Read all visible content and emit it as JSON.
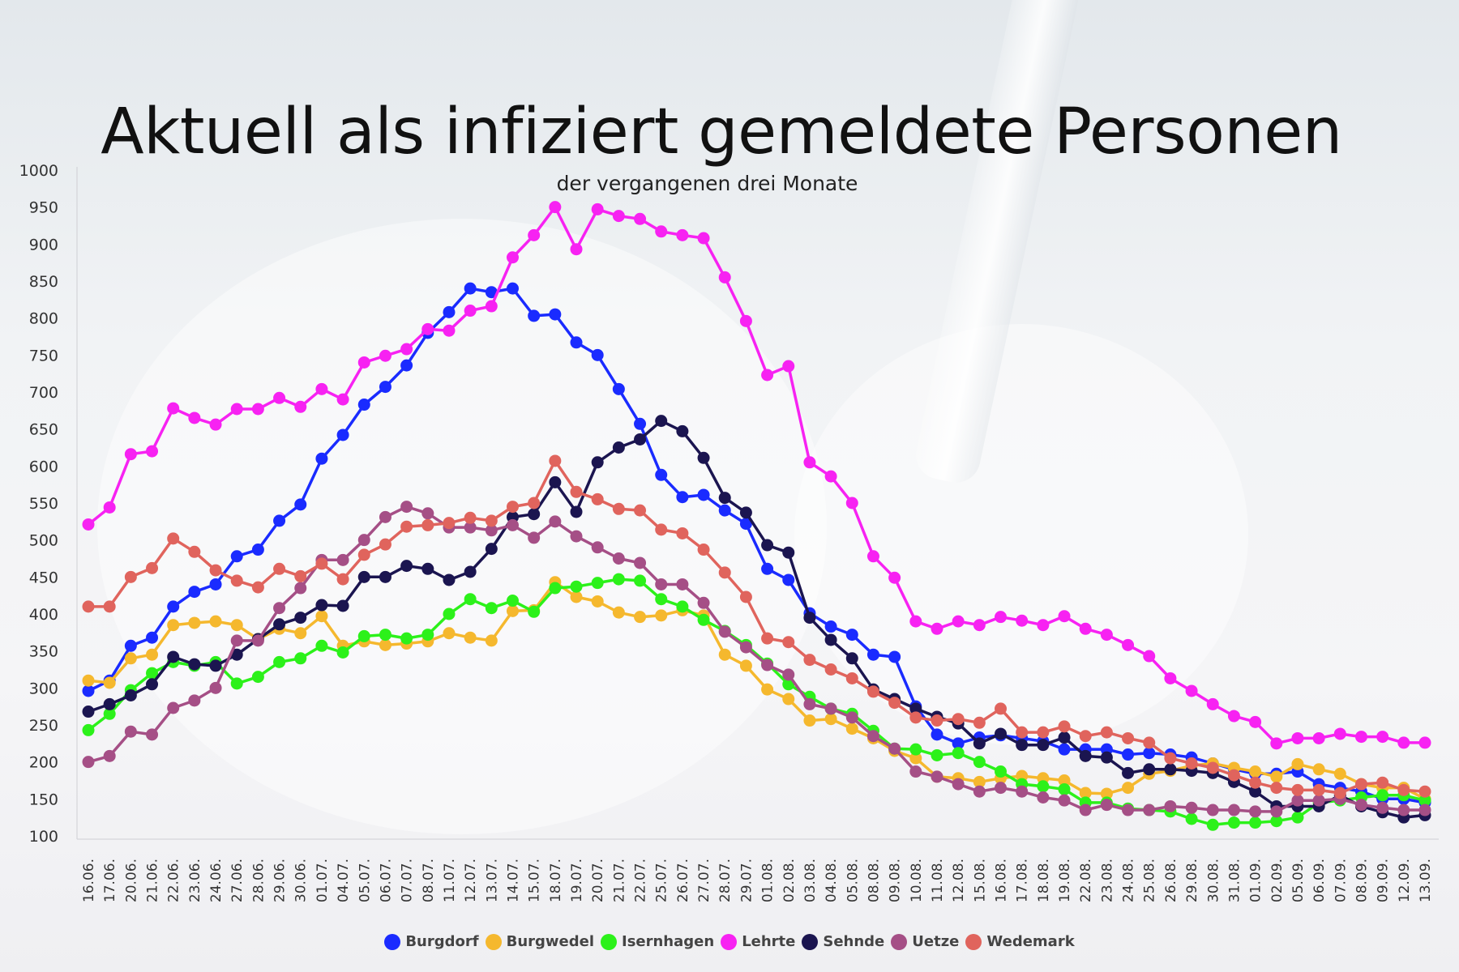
{
  "chart_data": {
    "type": "line",
    "title": "Aktuell als infiziert gemeldete Personen",
    "subtitle": "der vergangenen drei Monate",
    "xlabel": "",
    "ylabel": "",
    "ylim": [
      100,
      1000
    ],
    "yticks": [
      100,
      150,
      200,
      250,
      300,
      350,
      400,
      450,
      500,
      550,
      600,
      650,
      700,
      750,
      800,
      850,
      900,
      950,
      1000
    ],
    "grid": false,
    "legend_position": "bottom",
    "categories": [
      "16.06.",
      "17.06.",
      "20.06.",
      "21.06.",
      "22.06.",
      "23.06.",
      "24.06.",
      "27.06.",
      "28.06.",
      "29.06.",
      "30.06.",
      "01.07.",
      "04.07.",
      "05.07.",
      "06.07.",
      "07.07.",
      "08.07.",
      "11.07.",
      "12.07.",
      "13.07.",
      "14.07.",
      "15.07.",
      "18.07.",
      "19.07.",
      "20.07.",
      "21.07.",
      "22.07.",
      "25.07.",
      "26.07.",
      "27.07.",
      "28.07.",
      "29.07.",
      "01.08.",
      "02.08.",
      "03.08.",
      "04.08.",
      "05.08.",
      "08.08.",
      "09.08.",
      "10.08.",
      "11.08.",
      "12.08.",
      "15.08.",
      "16.08.",
      "17.08.",
      "18.08.",
      "19.08.",
      "22.08.",
      "23.08.",
      "24.08.",
      "25.08.",
      "26.08.",
      "29.08.",
      "30.08.",
      "31.08.",
      "01.09.",
      "02.09.",
      "05.09.",
      "06.09.",
      "07.09.",
      "08.09.",
      "09.09.",
      "12.09.",
      "13.09."
    ],
    "series": [
      {
        "name": "Burgdorf",
        "color": "#1a2bff",
        "values": [
          296,
          310,
          357,
          368,
          410,
          430,
          440,
          478,
          487,
          526,
          548,
          610,
          642,
          683,
          707,
          736,
          780,
          808,
          840,
          835,
          840,
          803,
          805,
          767,
          750,
          704,
          657,
          588,
          558,
          561,
          540,
          522,
          461,
          446,
          401,
          383,
          372,
          345,
          342,
          275,
          237,
          225,
          233,
          236,
          232,
          228,
          217,
          217,
          217,
          210,
          212,
          210,
          206,
          198,
          190,
          184,
          184,
          187,
          170,
          165,
          160,
          150,
          150,
          145
        ]
      },
      {
        "name": "Burgwedel",
        "color": "#f5b82e",
        "values": [
          310,
          307,
          340,
          345,
          385,
          388,
          390,
          385,
          366,
          380,
          374,
          397,
          357,
          363,
          358,
          360,
          363,
          374,
          368,
          364,
          404,
          405,
          443,
          423,
          417,
          402,
          396,
          398,
          405,
          398,
          345,
          330,
          298,
          285,
          256,
          258,
          245,
          232,
          215,
          205,
          180,
          178,
          173,
          178,
          181,
          178,
          175,
          158,
          157,
          165,
          184,
          188,
          195,
          198,
          192,
          187,
          180,
          197,
          190,
          184,
          170,
          165,
          165,
          150
        ]
      },
      {
        "name": "Isernhagen",
        "color": "#2cf11a",
        "values": [
          243,
          265,
          297,
          320,
          335,
          330,
          335,
          306,
          315,
          335,
          340,
          357,
          348,
          370,
          372,
          367,
          372,
          400,
          420,
          408,
          418,
          403,
          435,
          437,
          442,
          447,
          445,
          420,
          410,
          392,
          377,
          358,
          333,
          305,
          288,
          272,
          265,
          242,
          218,
          217,
          209,
          212,
          200,
          187,
          170,
          167,
          163,
          145,
          145,
          137,
          135,
          133,
          123,
          115,
          118,
          118,
          120,
          125,
          145,
          148,
          152,
          155,
          155,
          148
        ]
      },
      {
        "name": "Lehrte",
        "color": "#f722f2",
        "values": [
          521,
          544,
          616,
          620,
          678,
          665,
          656,
          677,
          677,
          692,
          680,
          704,
          690,
          740,
          749,
          758,
          785,
          783,
          810,
          816,
          882,
          912,
          950,
          893,
          947,
          938,
          934,
          917,
          912,
          908,
          855,
          796,
          723,
          735,
          605,
          586,
          550,
          478,
          449,
          390,
          380,
          390,
          385,
          396,
          391,
          385,
          397,
          380,
          372,
          358,
          343,
          313,
          296,
          278,
          262,
          254,
          225,
          232,
          232,
          238,
          234,
          234,
          226,
          226
        ]
      },
      {
        "name": "Sehnde",
        "color": "#1b1550",
        "values": [
          268,
          278,
          290,
          305,
          342,
          332,
          330,
          345,
          366,
          386,
          395,
          412,
          411,
          450,
          450,
          465,
          461,
          446,
          457,
          488,
          531,
          535,
          578,
          538,
          605,
          625,
          636,
          661,
          647,
          611,
          557,
          537,
          493,
          483,
          395,
          365,
          340,
          298,
          285,
          272,
          261,
          252,
          225,
          238,
          223,
          223,
          233,
          208,
          206,
          185,
          190,
          190,
          188,
          185,
          173,
          160,
          140,
          140,
          140,
          155,
          140,
          132,
          125,
          128
        ]
      },
      {
        "name": "Uetze",
        "color": "#a54f86",
        "values": [
          200,
          208,
          241,
          237,
          273,
          283,
          300,
          364,
          364,
          408,
          435,
          473,
          473,
          500,
          531,
          545,
          536,
          517,
          517,
          513,
          520,
          503,
          525,
          505,
          490,
          475,
          469,
          440,
          440,
          415,
          376,
          355,
          331,
          318,
          278,
          272,
          260,
          235,
          218,
          187,
          180,
          170,
          160,
          165,
          160,
          152,
          148,
          135,
          142,
          135,
          135,
          140,
          138,
          135,
          135,
          133,
          133,
          148,
          148,
          150,
          142,
          138,
          135,
          135
        ]
      },
      {
        "name": "Wedemark",
        "color": "#e0645d",
        "values": [
          410,
          410,
          450,
          462,
          502,
          484,
          459,
          445,
          436,
          461,
          451,
          468,
          447,
          480,
          494,
          518,
          520,
          523,
          530,
          526,
          545,
          550,
          607,
          565,
          555,
          542,
          540,
          514,
          509,
          487,
          456,
          423,
          367,
          362,
          338,
          325,
          313,
          295,
          280,
          260,
          256,
          258,
          253,
          272,
          240,
          240,
          248,
          235,
          240,
          232,
          226,
          205,
          198,
          192,
          182,
          172,
          165,
          162,
          162,
          158,
          170,
          172,
          162,
          160
        ]
      }
    ]
  }
}
